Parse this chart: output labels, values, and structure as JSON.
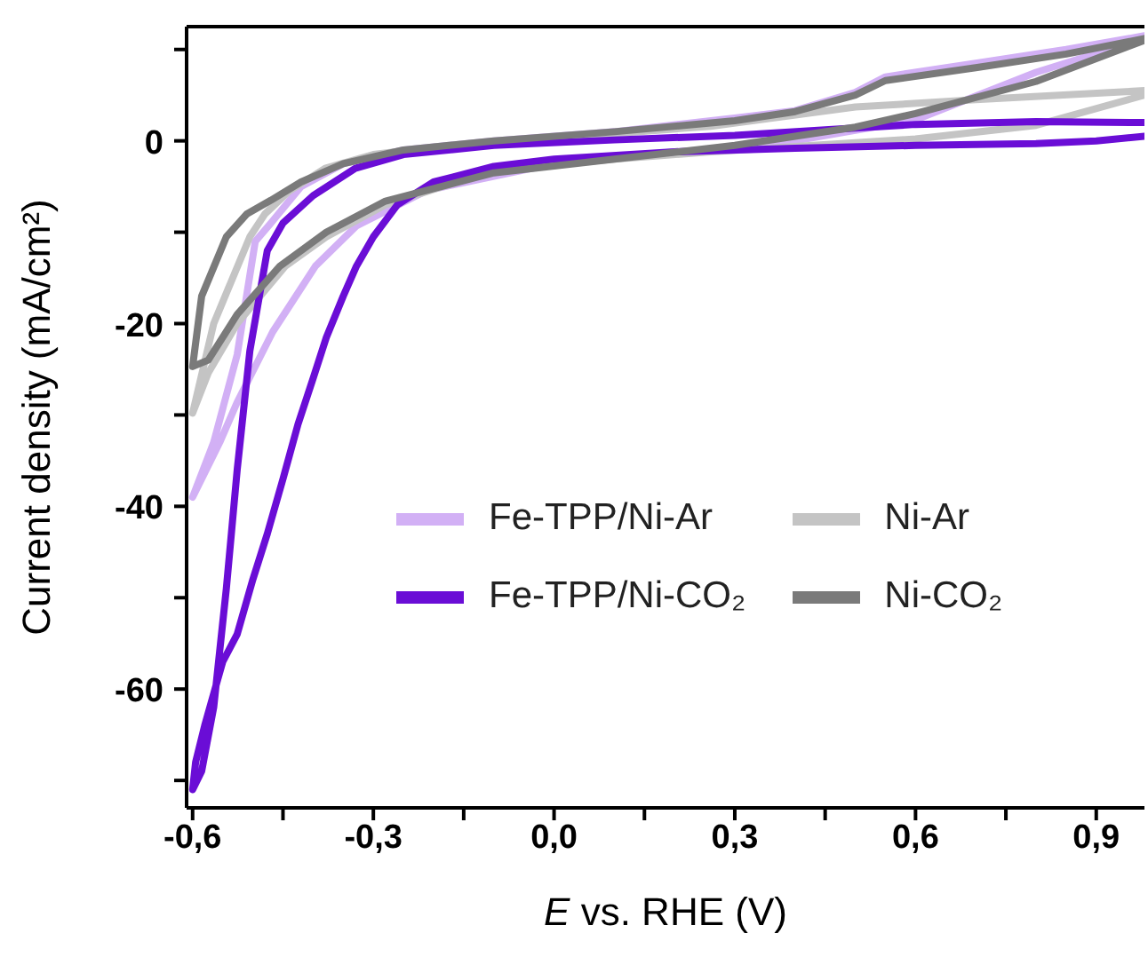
{
  "chart_data": {
    "type": "line",
    "xlabel": "E vs. RHE (V)",
    "ylabel": "Current density (mA/cm²)",
    "xlim": [
      -0.61,
      0.98
    ],
    "ylim": [
      -73,
      12.5
    ],
    "xticks": [
      {
        "value": -0.6,
        "label": "-0,6"
      },
      {
        "value": -0.45,
        "label": null
      },
      {
        "value": -0.3,
        "label": "-0,3"
      },
      {
        "value": -0.15,
        "label": null
      },
      {
        "value": 0,
        "label": "0,0"
      },
      {
        "value": 0.15,
        "label": null
      },
      {
        "value": 0.3,
        "label": "0,3"
      },
      {
        "value": 0.45,
        "label": null
      },
      {
        "value": 0.6,
        "label": "0,6"
      },
      {
        "value": 0.75,
        "label": null
      },
      {
        "value": 0.9,
        "label": "0,9"
      }
    ],
    "yticks": [
      {
        "value": -70,
        "label": null
      },
      -60,
      {
        "value": -50,
        "label": null
      },
      -40,
      {
        "value": -30,
        "label": null
      },
      -20,
      {
        "value": -10,
        "label": null
      },
      0,
      {
        "value": 10,
        "label": null
      }
    ],
    "grid": false,
    "legend": "bottom right",
    "marker": "none",
    "line_style": "solid",
    "series": [
      {
        "name": "Fe-TPP/Ni-Ar",
        "color": "#d2b0f5",
        "x": [
          0.98,
          0.85,
          0.7,
          0.55,
          0.5,
          0.4,
          0.3,
          0.1,
          -0.1,
          -0.25,
          -0.35,
          -0.42,
          -0.47,
          -0.496,
          -0.526,
          -0.565,
          -0.6,
          -0.555,
          -0.526,
          -0.467,
          -0.396,
          -0.328,
          -0.21,
          0,
          0.2,
          0.3,
          0.4,
          0.6,
          0.8,
          0.97
        ],
        "values": [
          11.5,
          10,
          8.5,
          7,
          5.3,
          3.3,
          2.5,
          1,
          0,
          -1,
          -2.5,
          -5,
          -9,
          -11,
          -23.4,
          -33,
          -39,
          -33,
          -28.6,
          -20.9,
          -13.7,
          -9.3,
          -5.4,
          -2.5,
          -1.2,
          -0.8,
          0,
          2.3,
          7.5,
          11
        ]
      },
      {
        "name": "Ni-Ar",
        "color": "#c4c4c4",
        "x": [
          0.98,
          0.7,
          0.5,
          0.26,
          0,
          -0.2,
          -0.3,
          -0.38,
          -0.44,
          -0.48,
          -0.505,
          -0.565,
          -0.6,
          -0.574,
          -0.526,
          -0.446,
          -0.378,
          -0.28,
          -0.1,
          0.1,
          0.26,
          0.6,
          0.8,
          0.98
        ],
        "values": [
          5.5,
          4.5,
          3.7,
          1.6,
          0.3,
          -0.7,
          -1.5,
          -3,
          -5.5,
          -8,
          -10.5,
          -20,
          -29.8,
          -25.4,
          -20,
          -13.7,
          -10.5,
          -7,
          -3.2,
          -2,
          -1.2,
          0.2,
          1.7,
          5
        ]
      },
      {
        "name": "Fe-TPP/Ni-CO₂",
        "color": "#6a0dd6",
        "x": [
          0.98,
          0.8,
          0.6,
          0.45,
          0.3,
          0.1,
          -0.1,
          -0.25,
          -0.33,
          -0.4,
          -0.45,
          -0.476,
          -0.505,
          -0.526,
          -0.544,
          -0.565,
          -0.585,
          -0.6,
          -0.595,
          -0.58,
          -0.55,
          -0.526,
          -0.5,
          -0.476,
          -0.45,
          -0.425,
          -0.4,
          -0.378,
          -0.35,
          -0.328,
          -0.3,
          -0.26,
          -0.2,
          -0.1,
          0,
          0.2,
          0.4,
          0.6,
          0.8,
          0.9,
          0.98
        ],
        "values": [
          2,
          2.1,
          1.8,
          1.2,
          0.6,
          0.1,
          -0.5,
          -1.5,
          -3,
          -6,
          -9,
          -12,
          -23,
          -36,
          -49,
          -62,
          -69,
          -71,
          -68,
          -64,
          -57,
          -54,
          -48,
          -43,
          -37,
          -31,
          -26,
          -21.5,
          -17,
          -13.7,
          -10.5,
          -7,
          -4.5,
          -2.8,
          -2,
          -1.2,
          -0.8,
          -0.5,
          -0.3,
          0,
          0.5
        ]
      },
      {
        "name": "Ni-CO₂",
        "color": "#7a7a7a",
        "x": [
          0.98,
          0.85,
          0.7,
          0.55,
          0.5,
          0.4,
          0.3,
          0.1,
          -0.1,
          -0.25,
          -0.35,
          -0.42,
          -0.47,
          -0.51,
          -0.544,
          -0.585,
          -0.6,
          -0.574,
          -0.526,
          -0.455,
          -0.378,
          -0.28,
          -0.1,
          0.1,
          0.3,
          0.5,
          0.6,
          0.8,
          0.98
        ],
        "values": [
          11.2,
          9.5,
          8,
          6.6,
          5,
          3.2,
          2.2,
          1,
          0,
          -1,
          -2.5,
          -4.5,
          -6.5,
          -8,
          -10.5,
          -17,
          -24.7,
          -24,
          -19,
          -13.7,
          -10,
          -6.6,
          -3.5,
          -2,
          -0.5,
          1.5,
          3,
          6.5,
          11
        ]
      }
    ]
  }
}
